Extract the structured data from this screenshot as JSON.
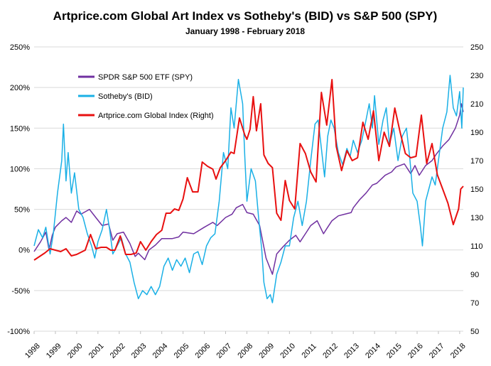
{
  "chart_data": {
    "type": "line",
    "title": "Artprice.com Global Art Index vs Sotheby's (BID) vs S&P 500 (SPY)",
    "subtitle": "January 1998  - February 2018",
    "y_left_ticks": [
      "250%",
      "200%",
      "150%",
      "100%",
      "50%",
      "0%",
      "-50%",
      "-100%"
    ],
    "y_left_values": [
      250,
      200,
      150,
      100,
      50,
      0,
      -50,
      -100
    ],
    "y_left_range": [
      -100,
      250
    ],
    "y_right_ticks": [
      "250",
      "230",
      "210",
      "190",
      "170",
      "150",
      "130",
      "110",
      "90",
      "70",
      "50"
    ],
    "y_right_values": [
      250,
      230,
      210,
      190,
      170,
      150,
      130,
      110,
      90,
      70,
      50
    ],
    "y_right_range": [
      50,
      250
    ],
    "x_ticks": [
      "1998",
      "1999",
      "2000",
      "2001",
      "2002",
      "2003",
      "2004",
      "2005",
      "2006",
      "2007",
      "2008",
      "2009",
      "2010",
      "2011",
      "2012",
      "2013",
      "2014",
      "2015",
      "2016",
      "2017",
      "2018"
    ],
    "x_range": [
      1998.0,
      2018.17
    ],
    "grid": true,
    "legend_position": "top-left",
    "series": [
      {
        "name": "SPDR S&P 500 ETF (SPY)",
        "axis": "left",
        "color": "#7030a0",
        "points": [
          [
            1998.0,
            -2
          ],
          [
            1998.3,
            10
          ],
          [
            1998.55,
            22
          ],
          [
            1998.7,
            0
          ],
          [
            1998.85,
            18
          ],
          [
            1999.0,
            28
          ],
          [
            1999.3,
            36
          ],
          [
            1999.5,
            40
          ],
          [
            1999.75,
            34
          ],
          [
            2000.0,
            48
          ],
          [
            2000.2,
            44
          ],
          [
            2000.6,
            50
          ],
          [
            2000.9,
            40
          ],
          [
            2001.2,
            30
          ],
          [
            2001.5,
            32
          ],
          [
            2001.7,
            12
          ],
          [
            2001.9,
            20
          ],
          [
            2002.2,
            22
          ],
          [
            2002.5,
            8
          ],
          [
            2002.75,
            -8
          ],
          [
            2002.9,
            -4
          ],
          [
            2003.2,
            -12
          ],
          [
            2003.4,
            0
          ],
          [
            2003.7,
            6
          ],
          [
            2004.0,
            14
          ],
          [
            2004.5,
            14
          ],
          [
            2004.8,
            16
          ],
          [
            2005.0,
            22
          ],
          [
            2005.5,
            20
          ],
          [
            2006.0,
            28
          ],
          [
            2006.4,
            34
          ],
          [
            2006.6,
            30
          ],
          [
            2007.0,
            40
          ],
          [
            2007.3,
            44
          ],
          [
            2007.5,
            52
          ],
          [
            2007.8,
            56
          ],
          [
            2008.0,
            46
          ],
          [
            2008.3,
            44
          ],
          [
            2008.6,
            30
          ],
          [
            2008.75,
            10
          ],
          [
            2008.9,
            -10
          ],
          [
            2009.2,
            -30
          ],
          [
            2009.4,
            -5
          ],
          [
            2009.7,
            4
          ],
          [
            2010.0,
            12
          ],
          [
            2010.3,
            18
          ],
          [
            2010.5,
            10
          ],
          [
            2010.8,
            22
          ],
          [
            2011.0,
            30
          ],
          [
            2011.3,
            36
          ],
          [
            2011.6,
            20
          ],
          [
            2011.8,
            28
          ],
          [
            2012.0,
            36
          ],
          [
            2012.3,
            42
          ],
          [
            2012.6,
            44
          ],
          [
            2012.9,
            46
          ],
          [
            2013.0,
            52
          ],
          [
            2013.3,
            62
          ],
          [
            2013.6,
            70
          ],
          [
            2013.9,
            80
          ],
          [
            2014.1,
            82
          ],
          [
            2014.5,
            92
          ],
          [
            2014.8,
            96
          ],
          [
            2015.0,
            102
          ],
          [
            2015.4,
            106
          ],
          [
            2015.7,
            94
          ],
          [
            2015.9,
            104
          ],
          [
            2016.1,
            92
          ],
          [
            2016.4,
            104
          ],
          [
            2016.7,
            110
          ],
          [
            2016.9,
            118
          ],
          [
            2017.2,
            128
          ],
          [
            2017.5,
            136
          ],
          [
            2017.8,
            150
          ],
          [
            2018.0,
            166
          ],
          [
            2018.08,
            180
          ],
          [
            2018.17,
            170
          ]
        ]
      },
      {
        "name": "Sotheby's (BID)",
        "axis": "left",
        "color": "#1ab0e6",
        "points": [
          [
            1998.0,
            5
          ],
          [
            1998.2,
            25
          ],
          [
            1998.4,
            15
          ],
          [
            1998.55,
            28
          ],
          [
            1998.75,
            -5
          ],
          [
            1998.9,
            20
          ],
          [
            1999.1,
            70
          ],
          [
            1999.3,
            110
          ],
          [
            1999.38,
            155
          ],
          [
            1999.5,
            85
          ],
          [
            1999.6,
            120
          ],
          [
            1999.75,
            70
          ],
          [
            1999.9,
            95
          ],
          [
            2000.1,
            50
          ],
          [
            2000.3,
            40
          ],
          [
            2000.5,
            20
          ],
          [
            2000.7,
            5
          ],
          [
            2000.85,
            -10
          ],
          [
            2001.0,
            10
          ],
          [
            2001.2,
            25
          ],
          [
            2001.4,
            50
          ],
          [
            2001.55,
            25
          ],
          [
            2001.7,
            -5
          ],
          [
            2001.9,
            5
          ],
          [
            2002.1,
            15
          ],
          [
            2002.3,
            -5
          ],
          [
            2002.5,
            -15
          ],
          [
            2002.7,
            -40
          ],
          [
            2002.9,
            -60
          ],
          [
            2003.1,
            -50
          ],
          [
            2003.3,
            -55
          ],
          [
            2003.5,
            -45
          ],
          [
            2003.7,
            -55
          ],
          [
            2003.9,
            -45
          ],
          [
            2004.1,
            -20
          ],
          [
            2004.3,
            -10
          ],
          [
            2004.5,
            -25
          ],
          [
            2004.7,
            -12
          ],
          [
            2004.9,
            -20
          ],
          [
            2005.1,
            -10
          ],
          [
            2005.3,
            -28
          ],
          [
            2005.5,
            -5
          ],
          [
            2005.7,
            -2
          ],
          [
            2005.9,
            -18
          ],
          [
            2006.1,
            5
          ],
          [
            2006.3,
            15
          ],
          [
            2006.5,
            20
          ],
          [
            2006.7,
            60
          ],
          [
            2006.9,
            120
          ],
          [
            2007.1,
            100
          ],
          [
            2007.25,
            175
          ],
          [
            2007.4,
            150
          ],
          [
            2007.6,
            210
          ],
          [
            2007.8,
            180
          ],
          [
            2007.9,
            115
          ],
          [
            2008.0,
            60
          ],
          [
            2008.2,
            100
          ],
          [
            2008.4,
            85
          ],
          [
            2008.55,
            40
          ],
          [
            2008.7,
            0
          ],
          [
            2008.8,
            -40
          ],
          [
            2008.95,
            -60
          ],
          [
            2009.1,
            -55
          ],
          [
            2009.2,
            -65
          ],
          [
            2009.4,
            -30
          ],
          [
            2009.6,
            -15
          ],
          [
            2009.8,
            5
          ],
          [
            2010.0,
            5
          ],
          [
            2010.2,
            40
          ],
          [
            2010.4,
            60
          ],
          [
            2010.6,
            30
          ],
          [
            2010.8,
            60
          ],
          [
            2011.0,
            110
          ],
          [
            2011.2,
            155
          ],
          [
            2011.35,
            160
          ],
          [
            2011.5,
            125
          ],
          [
            2011.65,
            90
          ],
          [
            2011.8,
            140
          ],
          [
            2011.95,
            160
          ],
          [
            2012.1,
            150
          ],
          [
            2012.3,
            120
          ],
          [
            2012.5,
            105
          ],
          [
            2012.7,
            125
          ],
          [
            2012.85,
            115
          ],
          [
            2013.0,
            135
          ],
          [
            2013.2,
            120
          ],
          [
            2013.4,
            135
          ],
          [
            2013.6,
            160
          ],
          [
            2013.75,
            180
          ],
          [
            2013.9,
            150
          ],
          [
            2014.0,
            190
          ],
          [
            2014.2,
            130
          ],
          [
            2014.4,
            160
          ],
          [
            2014.55,
            175
          ],
          [
            2014.7,
            130
          ],
          [
            2014.9,
            150
          ],
          [
            2015.1,
            110
          ],
          [
            2015.3,
            140
          ],
          [
            2015.5,
            150
          ],
          [
            2015.65,
            115
          ],
          [
            2015.8,
            70
          ],
          [
            2016.0,
            60
          ],
          [
            2016.15,
            30
          ],
          [
            2016.25,
            5
          ],
          [
            2016.4,
            60
          ],
          [
            2016.55,
            75
          ],
          [
            2016.7,
            90
          ],
          [
            2016.85,
            80
          ],
          [
            2017.0,
            110
          ],
          [
            2017.2,
            150
          ],
          [
            2017.4,
            170
          ],
          [
            2017.55,
            215
          ],
          [
            2017.7,
            175
          ],
          [
            2017.85,
            165
          ],
          [
            2018.0,
            195
          ],
          [
            2018.1,
            150
          ],
          [
            2018.17,
            200
          ]
        ]
      },
      {
        "name": "Artprice.com Global Index (Right)",
        "axis": "right",
        "color": "#e81010",
        "points": [
          [
            1998.0,
            100
          ],
          [
            1998.5,
            105
          ],
          [
            1998.75,
            108
          ],
          [
            1999.0,
            107
          ],
          [
            1999.25,
            106
          ],
          [
            1999.5,
            108
          ],
          [
            1999.75,
            103
          ],
          [
            2000.0,
            104
          ],
          [
            2000.4,
            107
          ],
          [
            2000.65,
            118
          ],
          [
            2000.9,
            108
          ],
          [
            2001.15,
            109
          ],
          [
            2001.4,
            109
          ],
          [
            2001.6,
            107
          ],
          [
            2001.8,
            107
          ],
          [
            2002.05,
            117
          ],
          [
            2002.3,
            104
          ],
          [
            2002.55,
            104
          ],
          [
            2002.8,
            105
          ],
          [
            2003.0,
            113
          ],
          [
            2003.25,
            107
          ],
          [
            2003.5,
            113
          ],
          [
            2003.75,
            118
          ],
          [
            2004.0,
            121
          ],
          [
            2004.2,
            133
          ],
          [
            2004.4,
            133
          ],
          [
            2004.6,
            136
          ],
          [
            2004.8,
            135
          ],
          [
            2005.0,
            143
          ],
          [
            2005.2,
            158
          ],
          [
            2005.45,
            148
          ],
          [
            2005.7,
            148
          ],
          [
            2005.9,
            169
          ],
          [
            2006.15,
            166
          ],
          [
            2006.4,
            164
          ],
          [
            2006.55,
            157
          ],
          [
            2006.75,
            165
          ],
          [
            2007.0,
            170
          ],
          [
            2007.25,
            176
          ],
          [
            2007.4,
            175
          ],
          [
            2007.65,
            200
          ],
          [
            2007.9,
            188
          ],
          [
            2008.0,
            185
          ],
          [
            2008.15,
            192
          ],
          [
            2008.3,
            215
          ],
          [
            2008.45,
            191
          ],
          [
            2008.65,
            210
          ],
          [
            2008.8,
            174
          ],
          [
            2009.0,
            168
          ],
          [
            2009.2,
            165
          ],
          [
            2009.4,
            133
          ],
          [
            2009.6,
            128
          ],
          [
            2009.8,
            156
          ],
          [
            2010.0,
            142
          ],
          [
            2010.25,
            136
          ],
          [
            2010.5,
            182
          ],
          [
            2010.75,
            175
          ],
          [
            2011.0,
            162
          ],
          [
            2011.25,
            155
          ],
          [
            2011.5,
            218
          ],
          [
            2011.75,
            195
          ],
          [
            2012.0,
            227
          ],
          [
            2012.2,
            180
          ],
          [
            2012.45,
            163
          ],
          [
            2012.7,
            177
          ],
          [
            2012.95,
            170
          ],
          [
            2013.2,
            172
          ],
          [
            2013.45,
            197
          ],
          [
            2013.7,
            185
          ],
          [
            2013.95,
            205
          ],
          [
            2014.2,
            170
          ],
          [
            2014.45,
            190
          ],
          [
            2014.7,
            180
          ],
          [
            2014.95,
            207
          ],
          [
            2015.2,
            190
          ],
          [
            2015.45,
            175
          ],
          [
            2015.7,
            172
          ],
          [
            2015.95,
            173
          ],
          [
            2016.2,
            202
          ],
          [
            2016.45,
            168
          ],
          [
            2016.7,
            182
          ],
          [
            2016.95,
            160
          ],
          [
            2017.2,
            150
          ],
          [
            2017.45,
            140
          ],
          [
            2017.7,
            125
          ],
          [
            2017.95,
            136
          ],
          [
            2018.05,
            150
          ],
          [
            2018.17,
            152
          ]
        ]
      }
    ]
  }
}
